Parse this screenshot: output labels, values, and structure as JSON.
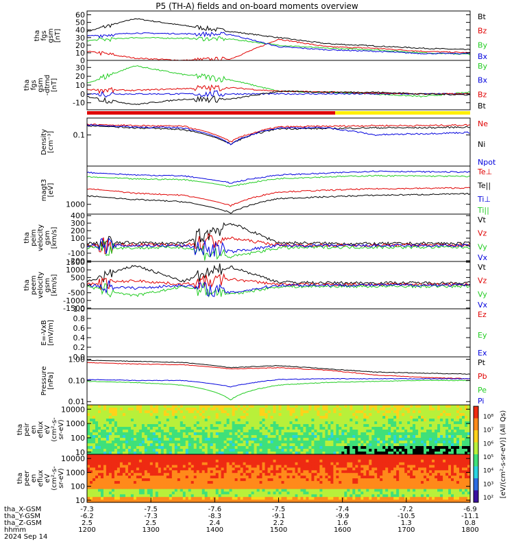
{
  "title": "P5 (TH-A) fields and on-board moments overview",
  "colors": {
    "black": "#000000",
    "red": "#e00000",
    "green": "#22cc22",
    "blue": "#0000dd",
    "yellow": "#ffee00"
  },
  "footer": {
    "rows": [
      {
        "label": "tha_X-GSM",
        "values": [
          "-7.3",
          "-7.5",
          "-7.6",
          "-7.5",
          "-7.4",
          "-7.2",
          "-6.9"
        ]
      },
      {
        "label": "tha_Y-GSM",
        "values": [
          "-6.2",
          "-7.3",
          "-8.3",
          "-9.1",
          "-9.9",
          "-10.5",
          "-11.1"
        ]
      },
      {
        "label": "tha_Z-GSM",
        "values": [
          "2.5",
          "2.5",
          "2.4",
          "2.2",
          "1.6",
          "1.3",
          "0.8"
        ]
      },
      {
        "label": "hhmm",
        "values": [
          "1200",
          "1300",
          "1400",
          "1500",
          "1600",
          "1700",
          "1800"
        ]
      }
    ],
    "date": "2024 Sep 14"
  },
  "colorbar": {
    "label": "[eV/(cm²-s-sr-eV)] (All Qs)",
    "ticks": [
      "10⁸",
      "10⁷",
      "10⁶",
      "10⁵",
      "10⁴",
      "10³",
      "10²"
    ]
  },
  "chart_data": [
    {
      "type": "line",
      "panel": "fgs_gsm",
      "ylabel": [
        "tha",
        "fgs",
        "gsm",
        "[nT]"
      ],
      "ylim": [
        0,
        65
      ],
      "yticks": [
        "60",
        "50",
        "40",
        "30",
        "20",
        "10",
        "0"
      ],
      "series": [
        {
          "name": "Bt",
          "color": "black",
          "values": [
            38,
            55,
            46,
            38,
            30,
            22,
            19,
            16,
            14
          ]
        },
        {
          "name": "Bz",
          "color": "red",
          "values": [
            12,
            3,
            0,
            2,
            28,
            18,
            16,
            12,
            10
          ]
        },
        {
          "name": "By",
          "color": "green",
          "values": [
            26,
            30,
            29,
            28,
            20,
            16,
            14,
            10,
            8
          ]
        },
        {
          "name": "Bx",
          "color": "blue",
          "values": [
            32,
            36,
            35,
            34,
            18,
            14,
            12,
            9,
            9
          ]
        }
      ]
    },
    {
      "type": "line",
      "panel": "fgs_gsm_detrend",
      "ylabel": [
        "tha",
        "fgs",
        "gsm",
        "-dtrnd",
        "[nT]"
      ],
      "ylim": [
        -18,
        38
      ],
      "yticks": [
        "30",
        "20",
        "10",
        "0",
        "-10"
      ],
      "series": [
        {
          "name": "By",
          "color": "green",
          "values": [
            12,
            32,
            22,
            16,
            3,
            2,
            0,
            -3,
            2
          ]
        },
        {
          "name": "Bx",
          "color": "blue",
          "values": [
            0,
            0,
            0,
            0,
            0,
            0,
            0,
            0,
            0
          ]
        },
        {
          "name": "Bz",
          "color": "red",
          "values": [
            5,
            4,
            6,
            7,
            3,
            2,
            1,
            0,
            0
          ]
        },
        {
          "name": "Bt",
          "color": "black",
          "values": [
            -3,
            -12,
            -6,
            -6,
            3,
            2,
            2,
            0,
            -1
          ]
        }
      ]
    },
    {
      "type": "line",
      "panel": "density",
      "ylabel": [
        "Density",
        "[cm⁻³]"
      ],
      "log": true,
      "ylim": [
        0.01,
        0.35
      ],
      "yticks": [
        "0.1"
      ],
      "series": [
        {
          "name": "Ne",
          "color": "red",
          "values": [
            0.22,
            0.2,
            0.19,
            0.06,
            0.18,
            0.19,
            0.2,
            0.2,
            0.21
          ]
        },
        {
          "name": "Ni",
          "color": "black",
          "values": [
            0.2,
            0.17,
            0.15,
            0.05,
            0.16,
            0.16,
            0.17,
            0.17,
            0.18
          ]
        },
        {
          "name": "Npot",
          "color": "blue",
          "values": [
            0.21,
            0.18,
            0.17,
            0.05,
            0.17,
            0.17,
            0.1,
            0.11,
            0.12
          ]
        }
      ]
    },
    {
      "type": "line",
      "panel": "temperature",
      "ylabel": [
        "magt3",
        "[eV]"
      ],
      "log": true,
      "ylim": [
        500,
        15000
      ],
      "yticks": [
        "1000"
      ],
      "series": [
        {
          "name": "Te⊥",
          "color": "red",
          "values": [
            3000,
            2200,
            1900,
            900,
            2400,
            2700,
            3000,
            3100,
            3200
          ]
        },
        {
          "name": "Te||",
          "color": "black",
          "values": [
            1800,
            1400,
            1200,
            550,
            1500,
            1700,
            1900,
            2000,
            2100
          ]
        },
        {
          "name": "Ti⊥",
          "color": "blue",
          "values": [
            9500,
            8000,
            7500,
            4500,
            8000,
            9000,
            10500,
            10000,
            9800
          ]
        },
        {
          "name": "Ti||",
          "color": "green",
          "values": [
            7000,
            6000,
            5800,
            3500,
            6200,
            7000,
            7600,
            7400,
            7200
          ]
        }
      ]
    },
    {
      "type": "line",
      "panel": "ion_velocity",
      "ylabel": [
        "tha",
        "peim",
        "velocity",
        "gsm",
        "[km/s]"
      ],
      "ylim": [
        -210,
        420
      ],
      "yticks": [
        "400",
        "300",
        "200",
        "100",
        "0",
        "-100",
        "-200"
      ],
      "series": [
        {
          "name": "Vt",
          "color": "black",
          "values": [
            30,
            40,
            25,
            300,
            40,
            30,
            25,
            30,
            30
          ]
        },
        {
          "name": "Vz",
          "color": "red",
          "values": [
            5,
            10,
            5,
            100,
            10,
            5,
            5,
            10,
            5
          ]
        },
        {
          "name": "Vy",
          "color": "green",
          "values": [
            -20,
            -30,
            -20,
            -150,
            -30,
            -20,
            -20,
            -20,
            -20
          ]
        },
        {
          "name": "Vx",
          "color": "blue",
          "values": [
            0,
            0,
            0,
            -80,
            0,
            0,
            0,
            0,
            0
          ]
        }
      ]
    },
    {
      "type": "line",
      "panel": "electron_velocity",
      "ylabel": [
        "tha",
        "peem",
        "velocity",
        "gsm",
        "[km/s]"
      ],
      "ylim": [
        -1550,
        1550
      ],
      "yticks": [
        "1500",
        "1000",
        "500",
        "0",
        "-500",
        "-1000",
        "-1500"
      ],
      "series": [
        {
          "name": "Vt",
          "color": "black",
          "values": [
            200,
            1300,
            250,
            1200,
            200,
            150,
            150,
            150,
            150
          ]
        },
        {
          "name": "Vz",
          "color": "red",
          "values": [
            50,
            300,
            50,
            400,
            50,
            50,
            50,
            50,
            50
          ]
        },
        {
          "name": "Vy",
          "color": "green",
          "values": [
            -100,
            -700,
            -100,
            -600,
            -100,
            -80,
            -80,
            -80,
            -80
          ]
        },
        {
          "name": "Vx",
          "color": "blue",
          "values": [
            0,
            -200,
            0,
            -500,
            0,
            0,
            0,
            0,
            0
          ]
        }
      ]
    },
    {
      "type": "line",
      "panel": "efield",
      "ylabel": [
        "E=-VxB",
        "[mV/m]"
      ],
      "ylim": [
        0,
        1.0
      ],
      "yticks": [
        "1.0",
        "0.8",
        "0.6",
        "0.4",
        "0.2",
        "0.0"
      ],
      "series": [
        {
          "name": "Ez",
          "color": "red",
          "values": []
        },
        {
          "name": "Ey",
          "color": "green",
          "values": []
        },
        {
          "name": "Ex",
          "color": "blue",
          "values": []
        }
      ]
    },
    {
      "type": "line",
      "panel": "pressure",
      "ylabel": [
        "Pressure",
        "[nPa]"
      ],
      "log": true,
      "ylim": [
        0.007,
        1.3
      ],
      "yticks": [
        "1.00",
        "0.10",
        "0.01"
      ],
      "series": [
        {
          "name": "Pt",
          "color": "black",
          "values": [
            0.9,
            0.8,
            0.7,
            0.4,
            0.5,
            0.35,
            0.25,
            0.22,
            0.2
          ]
        },
        {
          "name": "Pb",
          "color": "red",
          "values": [
            0.7,
            0.6,
            0.55,
            0.35,
            0.4,
            0.3,
            0.18,
            0.14,
            0.12
          ]
        },
        {
          "name": "Pe",
          "color": "green",
          "values": [
            0.09,
            0.08,
            0.06,
            0.012,
            0.06,
            0.08,
            0.09,
            0.1,
            0.1
          ]
        },
        {
          "name": "Pi",
          "color": "blue",
          "values": [
            0.11,
            0.1,
            0.1,
            0.05,
            0.11,
            0.12,
            0.12,
            0.12,
            0.12
          ]
        }
      ]
    },
    {
      "type": "heatmap",
      "panel": "ion_energy_flux",
      "ylabel": [
        "tha",
        "peir",
        "en",
        "eflux",
        "eV",
        "(cm²-s-",
        "sr-eV)"
      ],
      "log": true,
      "ylim": [
        7,
        20000
      ],
      "yticks": [
        "10000",
        "1000",
        "100",
        "10"
      ]
    },
    {
      "type": "heatmap",
      "panel": "electron_energy_flux",
      "ylabel": [
        "tha",
        "peer",
        "en",
        "eflux",
        "eV",
        "(cm²-s-",
        "sr-eV)"
      ],
      "log": true,
      "ylim": [
        7,
        20000
      ],
      "yticks": [
        "10000",
        "1000",
        "100",
        "10"
      ]
    }
  ]
}
